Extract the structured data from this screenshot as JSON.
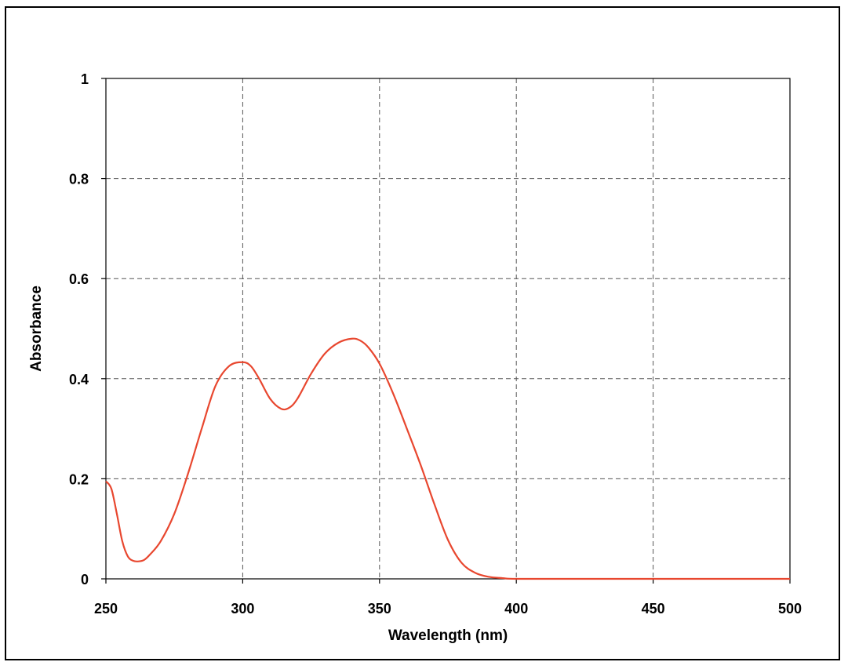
{
  "chart_data": {
    "type": "line",
    "title": "",
    "xlabel": "Wavelength (nm)",
    "ylabel": "Absorbance",
    "xlim": [
      250,
      500
    ],
    "ylim": [
      0,
      1
    ],
    "x_ticks": [
      "250",
      "300",
      "350",
      "400",
      "450",
      "500"
    ],
    "y_ticks": [
      "0",
      "0.2",
      "0.4",
      "0.6",
      "0.8",
      "1"
    ],
    "grid": true,
    "line_color": "#e8472f",
    "series": [
      {
        "x": [
          250,
          252,
          254,
          256,
          258,
          260,
          262,
          264,
          266,
          270,
          275,
          280,
          285,
          290,
          295,
          300,
          303,
          306,
          310,
          314,
          317,
          320,
          325,
          330,
          335,
          340,
          343,
          346,
          350,
          355,
          360,
          365,
          370,
          375,
          380,
          385,
          390,
          395,
          400,
          420,
          450,
          475,
          500
        ],
        "y": [
          0.195,
          0.18,
          0.13,
          0.075,
          0.045,
          0.036,
          0.035,
          0.038,
          0.048,
          0.075,
          0.13,
          0.21,
          0.3,
          0.385,
          0.425,
          0.433,
          0.425,
          0.4,
          0.36,
          0.34,
          0.342,
          0.36,
          0.41,
          0.45,
          0.472,
          0.48,
          0.476,
          0.462,
          0.43,
          0.37,
          0.3,
          0.228,
          0.15,
          0.078,
          0.032,
          0.012,
          0.004,
          0.0015,
          0.0,
          0.0,
          0.0,
          0.0,
          0.0
        ]
      }
    ]
  }
}
